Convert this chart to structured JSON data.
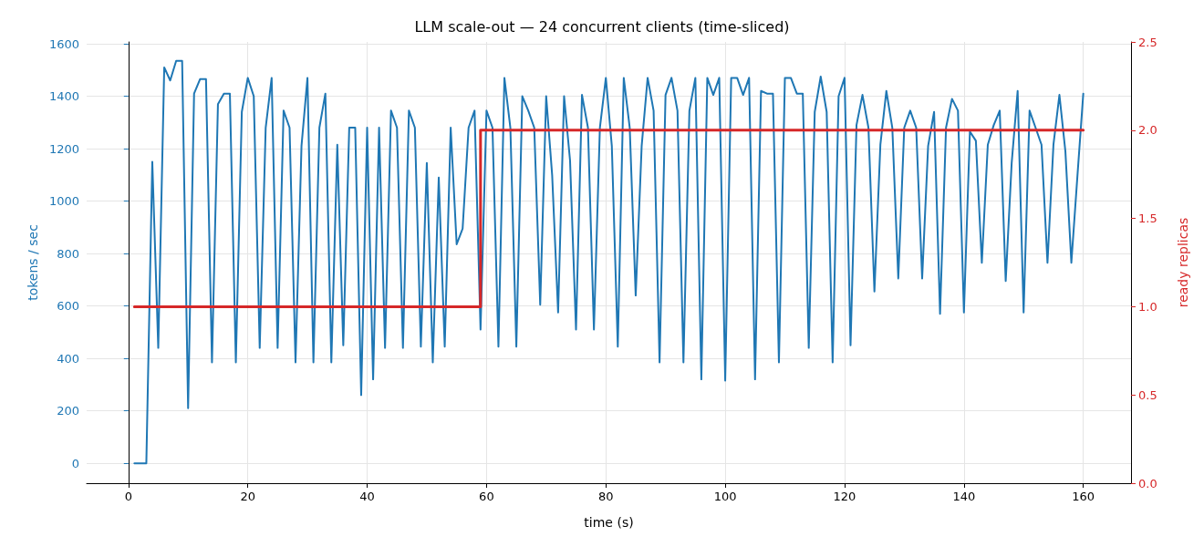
{
  "chart_data": {
    "type": "line",
    "title": "LLM scale-out — 24 concurrent clients (time-sliced)",
    "xlabel": "time (s)",
    "ylabel": "tokens / sec",
    "y2label": "ready replicas",
    "x": [
      1,
      2,
      3,
      4,
      5,
      6,
      7,
      8,
      9,
      10,
      11,
      12,
      13,
      14,
      15,
      16,
      17,
      18,
      19,
      20,
      21,
      22,
      23,
      24,
      25,
      26,
      27,
      28,
      29,
      30,
      31,
      32,
      33,
      34,
      35,
      36,
      37,
      38,
      39,
      40,
      41,
      42,
      43,
      44,
      45,
      46,
      47,
      48,
      49,
      50,
      51,
      52,
      53,
      54,
      55,
      56,
      57,
      58,
      59,
      60,
      61,
      62,
      63,
      64,
      65,
      66,
      67,
      68,
      69,
      70,
      71,
      72,
      73,
      74,
      75,
      76,
      77,
      78,
      79,
      80,
      81,
      82,
      83,
      84,
      85,
      86,
      87,
      88,
      89,
      90,
      91,
      92,
      93,
      94,
      95,
      96,
      97,
      98,
      99,
      100,
      101,
      102,
      103,
      104,
      105,
      106,
      107,
      108,
      109,
      110,
      111,
      112,
      113,
      114,
      115,
      116,
      117,
      118,
      119,
      120,
      121,
      122,
      123,
      124,
      125,
      126,
      127,
      128,
      129,
      130,
      131,
      132,
      133,
      134,
      135,
      136,
      137,
      138,
      139,
      140,
      141,
      142,
      143,
      144,
      145,
      146,
      147,
      148,
      149,
      150,
      151,
      152,
      153,
      154,
      155,
      156,
      157,
      158,
      159,
      160
    ],
    "series": [
      {
        "color": "#1f77b4",
        "values": [
          0,
          0,
          0,
          1150,
          440,
          1510,
          1460,
          1535,
          1535,
          210,
          1410,
          1465,
          1465,
          385,
          1370,
          1410,
          1410,
          385,
          1340,
          1470,
          1400,
          440,
          1280,
          1470,
          440,
          1345,
          1280,
          385,
          1210,
          1470,
          385,
          1280,
          1410,
          385,
          1215,
          450,
          1280,
          1280,
          260,
          1280,
          320,
          1280,
          440,
          1345,
          1280,
          440,
          1345,
          1280,
          445,
          1145,
          385,
          1090,
          445,
          1280,
          835,
          895,
          1280,
          1345,
          510,
          1345,
          1280,
          445,
          1470,
          1280,
          445,
          1400,
          1345,
          1280,
          605,
          1400,
          1100,
          575,
          1400,
          1155,
          510,
          1405,
          1280,
          510,
          1280,
          1470,
          1210,
          445,
          1470,
          1280,
          640,
          1210,
          1470,
          1345,
          385,
          1405,
          1470,
          1345,
          385,
          1345,
          1470,
          320,
          1470,
          1405,
          1470,
          315,
          1470,
          1470,
          1405,
          1470,
          320,
          1420,
          1410,
          1410,
          385,
          1470,
          1470,
          1410,
          1410,
          440,
          1340,
          1475,
          1340,
          385,
          1400,
          1470,
          450,
          1290,
          1405,
          1280,
          655,
          1215,
          1420,
          1280,
          705,
          1280,
          1345,
          1280,
          705,
          1210,
          1340,
          570,
          1280,
          1390,
          1345,
          575,
          1265,
          1230,
          765,
          1215,
          1290,
          1345,
          695,
          1145,
          1420,
          575,
          1345,
          1280,
          1215,
          765,
          1215,
          1405,
          1190,
          765,
          1090,
          1410
        ]
      },
      {
        "type": "step",
        "axis": "y2",
        "color": "#d62728",
        "x": [
          1,
          59,
          160
        ],
        "values": [
          1,
          2,
          2
        ]
      }
    ],
    "xlim": [
      -7,
      168
    ],
    "xticks": [
      0,
      20,
      40,
      60,
      80,
      100,
      120,
      140,
      160
    ],
    "ylim": [
      -76,
      1607
    ],
    "yticks": [
      0,
      200,
      400,
      600,
      800,
      1000,
      1200,
      1400,
      1600
    ],
    "y2lim": [
      0,
      2.5
    ],
    "y2ticks": [
      {
        "value": 0,
        "label": "0.0"
      },
      {
        "value": 0.5,
        "label": "0.5"
      },
      {
        "value": 1,
        "label": "1.0"
      },
      {
        "value": 1.5,
        "label": "1.5"
      },
      {
        "value": 2,
        "label": "2.0"
      },
      {
        "value": 2.5,
        "label": "2.5"
      }
    ],
    "grid": true
  }
}
